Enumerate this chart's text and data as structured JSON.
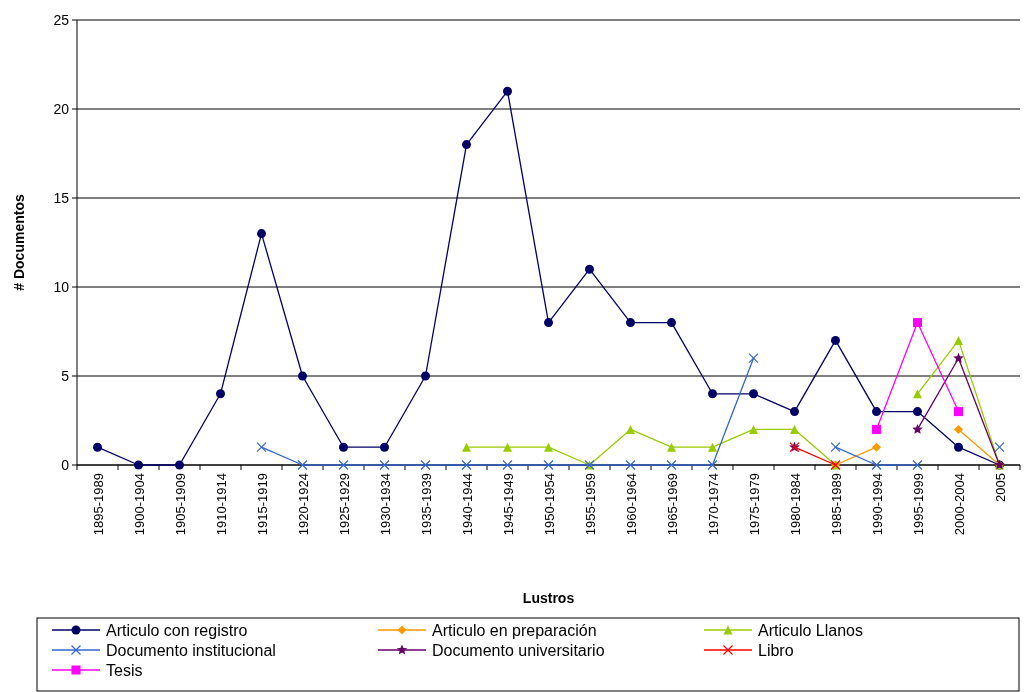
{
  "chart_data": {
    "type": "line",
    "xlabel": "Lustros",
    "ylabel": "# Documentos",
    "categories": [
      "1895-1989",
      "1900-1904",
      "1905-1909",
      "1910-1914",
      "1915-1919",
      "1920-1924",
      "1925-1929",
      "1930-1934",
      "1935-1939",
      "1940-1944",
      "1945-1949",
      "1950-1954",
      "1955-1959",
      "1960-1964",
      "1965-1969",
      "1970-1974",
      "1975-1979",
      "1980-1984",
      "1985-1989",
      "1990-1994",
      "1995-1999",
      "2000-2004",
      "2005"
    ],
    "series": [
      {
        "name": "Articulo con registro",
        "color": "#000066",
        "marker": "circle",
        "values": [
          1,
          0,
          0,
          4,
          13,
          5,
          1,
          1,
          5,
          18,
          21,
          8,
          11,
          8,
          8,
          4,
          4,
          3,
          7,
          3,
          3,
          1,
          0
        ]
      },
      {
        "name": "Articulo en preparación",
        "color": "#ff9900",
        "marker": "diamond",
        "values": [
          null,
          null,
          null,
          null,
          null,
          null,
          null,
          null,
          null,
          null,
          null,
          null,
          null,
          null,
          null,
          null,
          null,
          null,
          0,
          1,
          null,
          2,
          0
        ]
      },
      {
        "name": "Articulo Llanos",
        "color": "#99cc00",
        "marker": "triangle",
        "values": [
          null,
          null,
          null,
          null,
          null,
          null,
          null,
          null,
          null,
          1,
          1,
          1,
          0,
          2,
          1,
          1,
          2,
          2,
          0,
          null,
          4,
          7,
          0
        ]
      },
      {
        "name": "Documento institucional",
        "color": "#3366cc",
        "marker": "cross",
        "values": [
          null,
          null,
          null,
          null,
          1,
          0,
          0,
          0,
          0,
          0,
          0,
          0,
          0,
          0,
          0,
          0,
          6,
          null,
          1,
          0,
          0,
          null,
          1
        ]
      },
      {
        "name": "Documento universitario",
        "color": "#660066",
        "marker": "star",
        "values": [
          null,
          null,
          null,
          null,
          null,
          null,
          null,
          null,
          null,
          null,
          null,
          null,
          null,
          null,
          null,
          null,
          null,
          1,
          null,
          null,
          2,
          6,
          0
        ]
      },
      {
        "name": "Libro",
        "color": "#ff0000",
        "marker": "cross",
        "values": [
          null,
          null,
          null,
          null,
          null,
          null,
          null,
          null,
          null,
          null,
          null,
          null,
          null,
          null,
          null,
          null,
          null,
          1,
          0,
          null,
          null,
          null,
          null
        ]
      },
      {
        "name": "Tesis",
        "color": "#ff00ff",
        "marker": "square",
        "values": [
          null,
          null,
          null,
          null,
          null,
          null,
          null,
          null,
          null,
          null,
          null,
          null,
          null,
          null,
          null,
          null,
          null,
          null,
          null,
          2,
          8,
          3,
          null
        ]
      }
    ],
    "ylim": [
      0,
      25
    ],
    "yticks": [
      0,
      5,
      10,
      15,
      20,
      25
    ],
    "grid": "y",
    "legend": "bottom"
  }
}
